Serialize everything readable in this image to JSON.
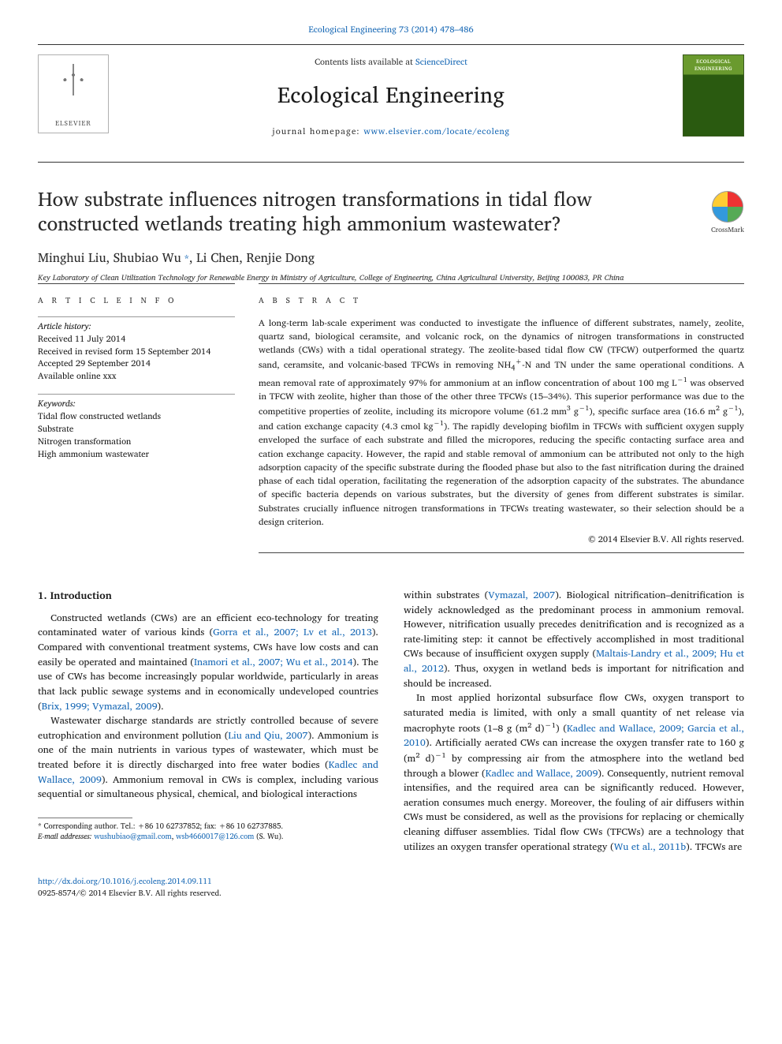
{
  "top_link": {
    "journal": "Ecological Engineering",
    "ref": "73 (2014) 478–486"
  },
  "header": {
    "contents_line_pre": "Contents lists available at ",
    "contents_line_link": "ScienceDirect",
    "journal_name": "Ecological Engineering",
    "homepage_label": "journal homepage: ",
    "homepage_url": "www.elsevier.com/locate/ecoleng",
    "elsevier_label": "ELSEVIER",
    "cover_title": "ECOLOGICAL ENGINEERING"
  },
  "title": "How substrate influences nitrogen transformations in tidal flow constructed wetlands treating high ammonium wastewater?",
  "crossmark_label": "CrossMark",
  "authors": [
    {
      "name": "Minghui Liu",
      "corr": false
    },
    {
      "name": "Shubiao Wu",
      "corr": true
    },
    {
      "name": "Li Chen",
      "corr": false
    },
    {
      "name": "Renjie Dong",
      "corr": false
    }
  ],
  "affiliation": "Key Laboratory of Clean Utilization Technology for Renewable Energy in Ministry of Agriculture, College of Engineering, China Agricultural University, Beijing 100083, PR China",
  "article_info": {
    "heading": "A R T I C L E   I N F O",
    "history_label": "Article history:",
    "history": [
      "Received 11 July 2014",
      "Received in revised form 15 September 2014",
      "Accepted 29 September 2014",
      "Available online xxx"
    ],
    "keywords_label": "Keywords:",
    "keywords": [
      "Tidal flow constructed wetlands",
      "Substrate",
      "Nitrogen transformation",
      "High ammonium wastewater"
    ]
  },
  "abstract": {
    "heading": "A B S T R A C T",
    "text": "A long-term lab-scale experiment was conducted to investigate the influence of different substrates, namely, zeolite, quartz sand, biological ceramsite, and volcanic rock, on the dynamics of nitrogen transformations in constructed wetlands (CWs) with a tidal operational strategy. The zeolite-based tidal flow CW (TFCW) outperformed the quartz sand, ceramsite, and volcanic-based TFCWs in removing NH4+-N and TN under the same operational conditions. A mean removal rate of approximately 97% for ammonium at an inflow concentration of about 100 mg L−1 was observed in TFCW with zeolite, higher than those of the other three TFCWs (15–34%). This superior performance was due to the competitive properties of zeolite, including its micropore volume (61.2 mm3 g−1), specific surface area (16.6 m2 g−1), and cation exchange capacity (4.3 cmol kg−1). The rapidly developing biofilm in TFCWs with sufficient oxygen supply enveloped the surface of each substrate and filled the micropores, reducing the specific contacting surface area and cation exchange capacity. However, the rapid and stable removal of ammonium can be attributed not only to the high adsorption capacity of the specific substrate during the flooded phase but also to the fast nitrification during the drained phase of each tidal operation, facilitating the regeneration of the adsorption capacity of the substrates. The abundance of specific bacteria depends on various substrates, but the diversity of genes from different substrates is similar. Substrates crucially influence nitrogen transformations in TFCWs treating wastewater, so their selection should be a design criterion.",
    "copyright": "© 2014 Elsevier B.V. All rights reserved."
  },
  "body": {
    "section_heading": "1. Introduction",
    "p1_a": "Constructed wetlands (CWs) are an efficient eco-technology for treating contaminated water of various kinds (",
    "p1_c1": "Gorra et al., 2007; Lv et al., 2013",
    "p1_b": "). Compared with conventional treatment systems, CWs have low costs and can easily be operated and maintained (",
    "p1_c2": "Inamori et al., 2007; Wu et al., 2014",
    "p1_c": "). The use of CWs has become increasingly popular worldwide, particularly in areas that lack public sewage systems and in economically undeveloped countries (",
    "p1_c3": "Brix, 1999; Vymazal, 2009",
    "p1_d": ").",
    "p2_a": "Wastewater discharge standards are strictly controlled because of severe eutrophication and environment pollution (",
    "p2_c1": "Liu and Qiu, 2007",
    "p2_b": "). Ammonium is one of the main nutrients in various types of wastewater, which must be treated before it is directly discharged into free water bodies (",
    "p2_c2": "Kadlec and Wallace, 2009",
    "p2_c": "). Ammonium removal in CWs is complex, including various sequential or simultaneous physical, chemical, and biological interactions",
    "p3_a": "within substrates (",
    "p3_c1": "Vymazal, 2007",
    "p3_b": "). Biological nitrification–denitrification is widely acknowledged as the predominant process in ammonium removal. However, nitrification usually precedes denitrification and is recognized as a rate-limiting step: it cannot be effectively accomplished in most traditional CWs because of insufficient oxygen supply (",
    "p3_c2": "Maltais-Landry et al., 2009; Hu et al., 2012",
    "p3_c": "). Thus, oxygen in wetland beds is important for nitrification and should be increased.",
    "p4_a": "In most applied horizontal subsurface flow CWs, oxygen transport to saturated media is limited, with only a small quantity of net release via macrophyte roots (1–8 g (m2 d)−1) (",
    "p4_c1": "Kadlec and Wallace, 2009; Garcia et al., 2010",
    "p4_b": "). Artificially aerated CWs can increase the oxygen transfer rate to 160 g (m2 d)−1 by compressing air from the atmosphere into the wetland bed through a blower (",
    "p4_c2": "Kadlec and Wallace, 2009",
    "p4_c": "). Consequently, nutrient removal intensifies, and the required area can be significantly reduced. However, aeration consumes much energy. Moreover, the fouling of air diffusers within CWs must be considered, as well as the provisions for replacing or chemically cleaning diffuser assemblies. Tidal flow CWs (TFCWs) are a technology that utilizes an oxygen transfer operational strategy (",
    "p4_c3": "Wu et al., 2011b",
    "p4_d": "). TFCWs are"
  },
  "footnote": {
    "corr_line": "* Corresponding author. Tel.: +86 10 62737852; fax: +86 10 62737885.",
    "email_label": "E-mail addresses: ",
    "email1": "wushubiao@gmail.com",
    "email_sep": ", ",
    "email2": "wsb4660017@126.com",
    "email_tail": " (S. Wu)."
  },
  "footer": {
    "doi": "http://dx.doi.org/10.1016/j.ecoleng.2014.09.111",
    "issn_line": "0925-8574/© 2014 Elsevier B.V. All rights reserved."
  },
  "colors": {
    "link": "#1768b5",
    "text": "#1a1a1a",
    "rule": "#444444"
  }
}
